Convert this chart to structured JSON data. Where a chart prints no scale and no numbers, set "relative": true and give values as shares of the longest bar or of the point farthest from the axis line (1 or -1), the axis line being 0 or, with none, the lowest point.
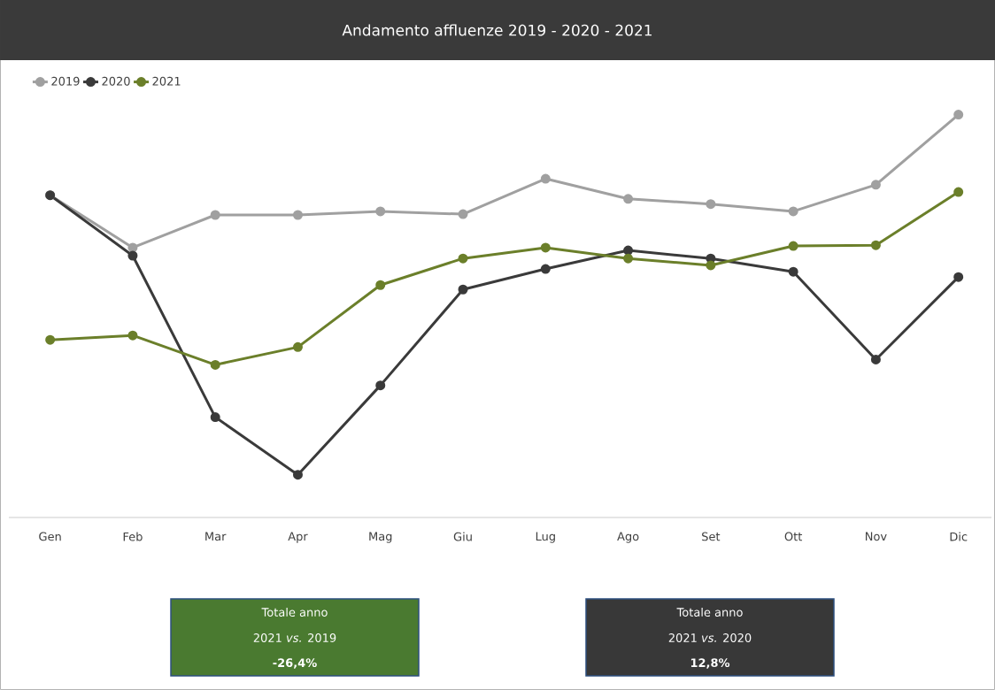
{
  "chart_data": {
    "type": "line",
    "title": "Andamento affluenze 2019 - 2020 - 2021",
    "relative": true,
    "legend": "top left",
    "marker": "circle",
    "categories": [
      "Gen",
      "Feb",
      "Mar",
      "Apr",
      "Mag",
      "Giu",
      "Lug",
      "Ago",
      "Set",
      "Ott",
      "Nov",
      "Dic"
    ],
    "series": [
      {
        "name": "2019",
        "color": "#a0a0a0",
        "values": [
          0.8,
          0.67,
          0.751,
          0.751,
          0.76,
          0.753,
          0.841,
          0.791,
          0.778,
          0.76,
          0.826,
          1
        ]
      },
      {
        "name": "2020",
        "color": "#3a3a3a",
        "values": [
          0.8,
          0.65,
          0.249,
          0.106,
          0.328,
          0.566,
          0.617,
          0.663,
          0.643,
          0.61,
          0.392,
          0.597
        ]
      },
      {
        "name": "2021",
        "color": "#6b7f2a",
        "values": [
          0.441,
          0.452,
          0.379,
          0.423,
          0.577,
          0.643,
          0.67,
          0.643,
          0.626,
          0.674,
          0.676,
          0.808
        ]
      }
    ],
    "annotations": [
      "Totale anno",
      "2021 *vs.* 2019",
      "**-26,4%**",
      "Totale anno",
      "2021 *vs.* 2020",
      "**12,8%**"
    ]
  }
}
